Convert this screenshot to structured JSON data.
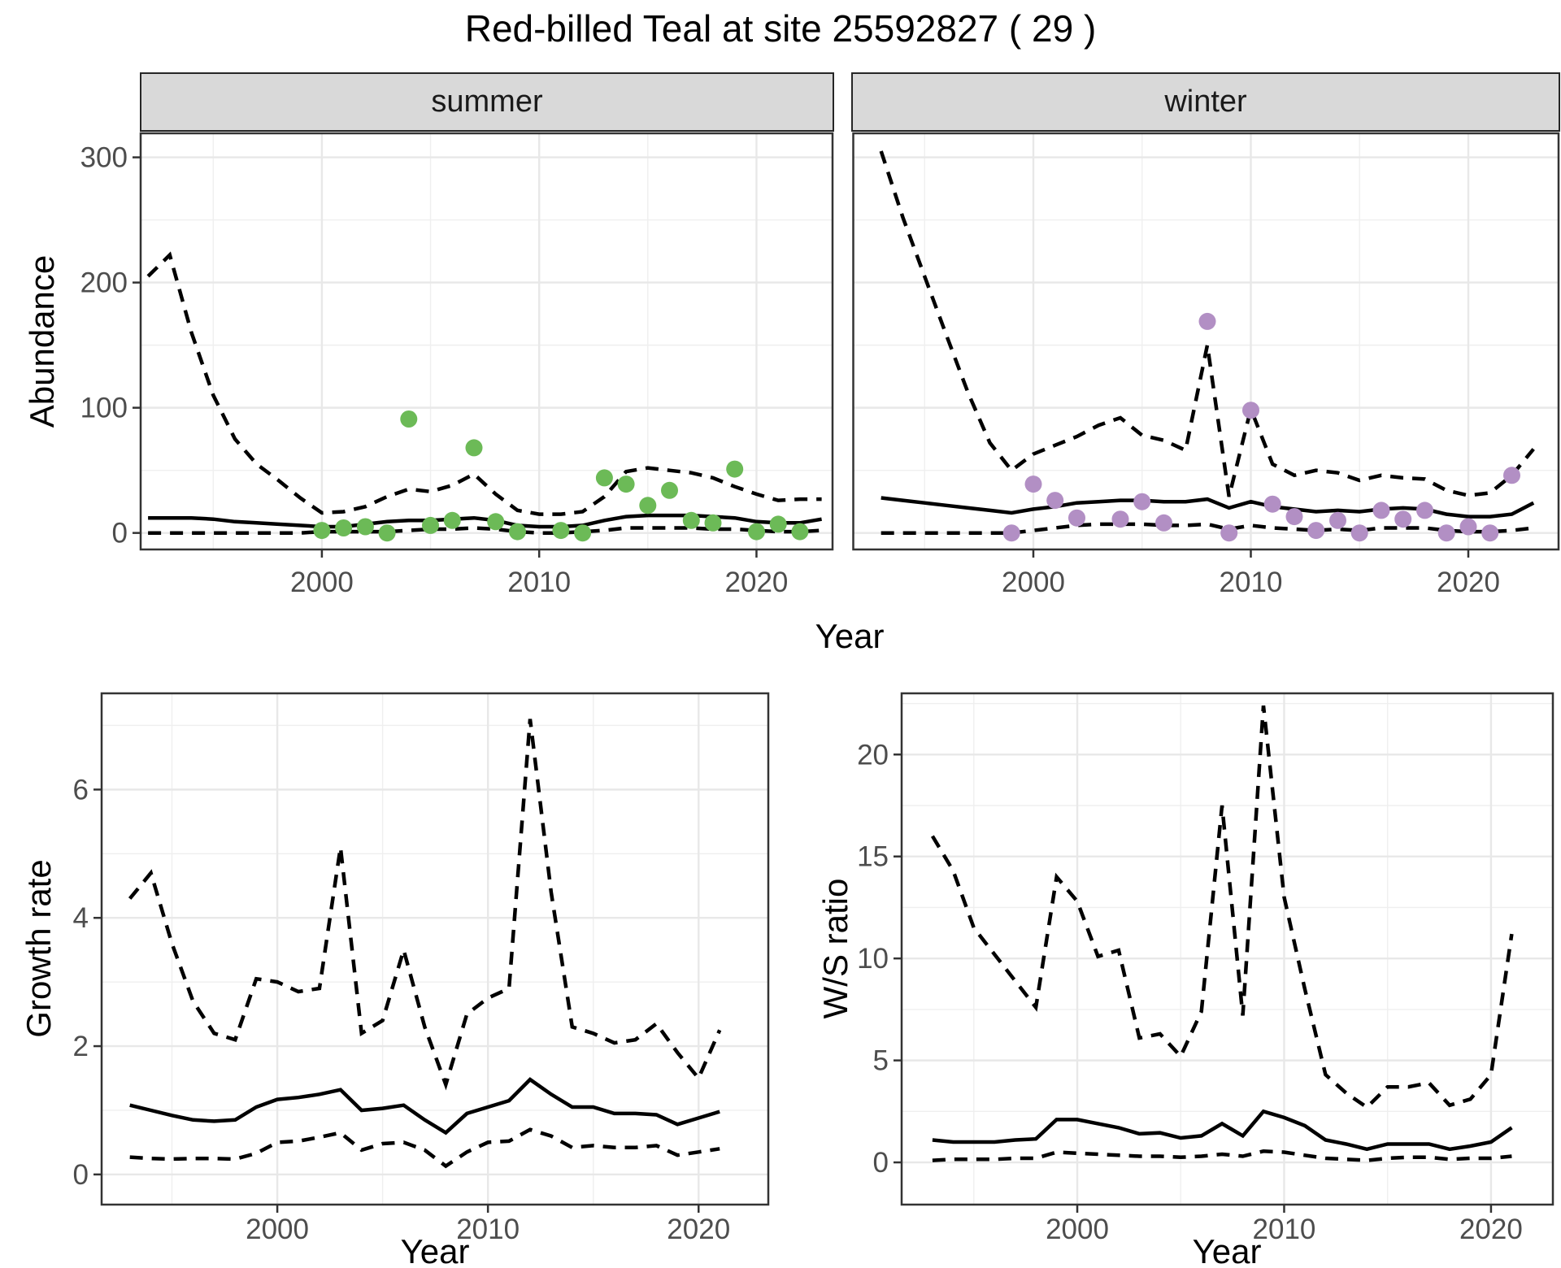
{
  "title": "Red-billed Teal at site 25592827 ( 29 )",
  "facets": {
    "summer": "summer",
    "winter": "winter"
  },
  "labels": {
    "abundance": "Abundance",
    "growth_rate": "Growth rate",
    "ws_ratio": "W/S ratio",
    "year": "Year"
  },
  "colors": {
    "summer_points": "#6CBA57",
    "winter_points": "#B28FC4",
    "line": "#000000",
    "grid_major": "#E8E8E8",
    "grid_minor": "#EFEFEF",
    "panel_border": "#333333",
    "strip_bg": "#D9D9D9",
    "tick_text": "#4D4D4D"
  },
  "chart_data": [
    {
      "id": "abundance-summer",
      "type": "line",
      "facet": "summer",
      "xlabel": "Year",
      "ylabel": "Abundance",
      "xlim": [
        1991.66,
        2023.5
      ],
      "ylim": [
        -13.2,
        319.2
      ],
      "xticks": [
        2000,
        2010,
        2020
      ],
      "xminor": [
        1995,
        2005,
        2015
      ],
      "yticks": [
        0,
        100,
        200,
        300
      ],
      "yminor": [
        50,
        150,
        250
      ],
      "grid": true,
      "legend_position": "none",
      "series": [
        {
          "name": "upper_95CI",
          "style": "dashed",
          "x": [
            1992,
            1993,
            1994,
            1995,
            1996,
            1997,
            1998,
            1999,
            2000,
            2001,
            2002,
            2003,
            2004,
            2005,
            2006,
            2007,
            2008,
            2009,
            2010,
            2011,
            2012,
            2013,
            2014,
            2015,
            2016,
            2017,
            2018,
            2019,
            2020,
            2021,
            2022,
            2023
          ],
          "y": [
            205,
            222,
            160,
            110,
            75,
            55,
            42,
            28,
            16,
            17,
            21,
            29,
            35,
            33,
            38,
            47,
            31,
            18,
            15,
            15,
            17,
            29,
            49,
            52,
            50,
            48,
            44,
            37,
            31,
            26,
            27,
            27
          ]
        },
        {
          "name": "median",
          "style": "solid",
          "x": [
            1992,
            1993,
            1994,
            1995,
            1996,
            1997,
            1998,
            1999,
            2000,
            2001,
            2002,
            2003,
            2004,
            2005,
            2006,
            2007,
            2008,
            2009,
            2010,
            2011,
            2012,
            2013,
            2014,
            2015,
            2016,
            2017,
            2018,
            2019,
            2020,
            2021,
            2022,
            2023
          ],
          "y": [
            12,
            12,
            12,
            11,
            9,
            8,
            7,
            6,
            5,
            5,
            7,
            9,
            10,
            10,
            11,
            12,
            10,
            6,
            5,
            5,
            6,
            10,
            13,
            14,
            14,
            14,
            13,
            12,
            9,
            8,
            8,
            11
          ]
        },
        {
          "name": "lower_95CI",
          "style": "dashed",
          "x": [
            1992,
            1993,
            1994,
            1995,
            1996,
            1997,
            1998,
            1999,
            2000,
            2001,
            2002,
            2003,
            2004,
            2005,
            2006,
            2007,
            2008,
            2009,
            2010,
            2011,
            2012,
            2013,
            2014,
            2015,
            2016,
            2017,
            2018,
            2019,
            2020,
            2021,
            2022,
            2023
          ],
          "y": [
            0,
            0,
            0,
            0,
            0,
            0,
            0,
            0,
            1,
            1,
            1,
            1,
            2,
            3,
            3,
            4,
            3,
            1,
            0,
            0,
            1,
            2,
            4,
            4,
            4,
            4,
            3,
            3,
            2,
            1,
            1,
            2
          ]
        }
      ],
      "points": {
        "name": "observed-counts-summer",
        "color": "#6CBA57",
        "x": [
          2000,
          2001,
          2002,
          2003,
          2004,
          2005,
          2006,
          2007,
          2008,
          2009,
          2011,
          2012,
          2013,
          2014,
          2015,
          2016,
          2017,
          2018,
          2019,
          2020,
          2021,
          2022
        ],
        "y": [
          2,
          4,
          5,
          0,
          91,
          6,
          10,
          68,
          9,
          1,
          2,
          0,
          44,
          39,
          22,
          34,
          10,
          8,
          51,
          1,
          7,
          1
        ]
      }
    },
    {
      "id": "abundance-winter",
      "type": "line",
      "facet": "winter",
      "xlabel": "Year",
      "ylabel": "Abundance",
      "xlim": [
        1991.72,
        2024.15
      ],
      "ylim": [
        -13.2,
        319.2
      ],
      "xticks": [
        2000,
        2010,
        2020
      ],
      "xminor": [
        1995,
        2005,
        2015
      ],
      "yticks": [
        0,
        100,
        200,
        300
      ],
      "yminor": [
        50,
        150,
        250
      ],
      "grid": true,
      "legend_position": "none",
      "series": [
        {
          "name": "upper_95CI",
          "style": "dashed",
          "x": [
            1993,
            1994,
            1995,
            1996,
            1997,
            1998,
            1999,
            2000,
            2001,
            2002,
            2003,
            2004,
            2005,
            2006,
            2007,
            2008,
            2009,
            2010,
            2011,
            2012,
            2013,
            2014,
            2015,
            2016,
            2017,
            2018,
            2019,
            2020,
            2021,
            2022,
            2023
          ],
          "y": [
            305,
            252,
            205,
            158,
            112,
            72,
            50,
            63,
            70,
            77,
            86,
            92,
            78,
            74,
            66,
            150,
            29,
            99,
            55,
            46,
            50,
            48,
            42,
            46,
            44,
            43,
            34,
            30,
            32,
            46,
            67
          ]
        },
        {
          "name": "median",
          "style": "solid",
          "x": [
            1993,
            1994,
            1995,
            1996,
            1997,
            1998,
            1999,
            2000,
            2001,
            2002,
            2003,
            2004,
            2005,
            2006,
            2007,
            2008,
            2009,
            2010,
            2011,
            2012,
            2013,
            2014,
            2015,
            2016,
            2017,
            2018,
            2019,
            2020,
            2021,
            2022,
            2023
          ],
          "y": [
            28,
            26,
            24,
            22,
            20,
            18,
            16,
            19,
            21,
            24,
            25,
            26,
            26,
            25,
            25,
            27,
            20,
            25,
            21,
            19,
            17,
            18,
            17,
            19,
            20,
            19,
            15,
            13,
            13,
            15,
            24
          ]
        },
        {
          "name": "lower_95CI",
          "style": "dashed",
          "x": [
            1993,
            1994,
            1995,
            1996,
            1997,
            1998,
            1999,
            2000,
            2001,
            2002,
            2003,
            2004,
            2005,
            2006,
            2007,
            2008,
            2009,
            2010,
            2011,
            2012,
            2013,
            2014,
            2015,
            2016,
            2017,
            2018,
            2019,
            2020,
            2021,
            2022,
            2023
          ],
          "y": [
            0,
            0,
            0,
            0,
            0,
            0,
            0,
            2,
            4,
            6,
            7,
            7,
            7,
            6,
            6,
            7,
            3,
            6,
            4,
            3,
            2,
            3,
            2,
            4,
            4,
            4,
            2,
            1,
            1,
            2,
            4
          ]
        }
      ],
      "points": {
        "name": "observed-counts-winter",
        "color": "#B28FC4",
        "x": [
          1999,
          2000,
          2001,
          2002,
          2004,
          2005,
          2006,
          2008,
          2009,
          2010,
          2011,
          2012,
          2013,
          2014,
          2015,
          2016,
          2017,
          2018,
          2019,
          2020,
          2021,
          2022
        ],
        "y": [
          0,
          39,
          26,
          12,
          11,
          25,
          8,
          169,
          0,
          98,
          23,
          13,
          2,
          10,
          0,
          18,
          11,
          18,
          0,
          5,
          0,
          46
        ]
      }
    },
    {
      "id": "growth-rate",
      "type": "line",
      "facet": null,
      "xlabel": "Year",
      "ylabel": "Growth rate",
      "xlim": [
        1991.66,
        2023.31
      ],
      "ylim": [
        -0.47,
        7.5
      ],
      "xticks": [
        2000,
        2010,
        2020
      ],
      "xminor": [
        1995,
        2005,
        2015
      ],
      "yticks": [
        0,
        2,
        4,
        6
      ],
      "yminor": [
        1,
        3,
        5,
        7
      ],
      "grid": true,
      "legend_position": "none",
      "series": [
        {
          "name": "upper_95CI",
          "style": "dashed",
          "x": [
            1993,
            1994,
            1995,
            1996,
            1997,
            1998,
            1999,
            2000,
            2001,
            2002,
            2003,
            2004,
            2005,
            2006,
            2007,
            2008,
            2009,
            2010,
            2011,
            2012,
            2013,
            2014,
            2015,
            2016,
            2017,
            2018,
            2019,
            2020,
            2021
          ],
          "y": [
            4.3,
            4.7,
            3.6,
            2.7,
            2.2,
            2.1,
            3.05,
            3.0,
            2.85,
            2.9,
            5.1,
            2.2,
            2.4,
            3.5,
            2.3,
            1.4,
            2.5,
            2.75,
            2.9,
            7.1,
            4.4,
            2.3,
            2.2,
            2.05,
            2.1,
            2.35,
            1.9,
            1.5,
            2.25
          ]
        },
        {
          "name": "median",
          "style": "solid",
          "x": [
            1993,
            1994,
            1995,
            1996,
            1997,
            1998,
            1999,
            2000,
            2001,
            2002,
            2003,
            2004,
            2005,
            2006,
            2007,
            2008,
            2009,
            2010,
            2011,
            2012,
            2013,
            2014,
            2015,
            2016,
            2017,
            2018,
            2019,
            2020,
            2021
          ],
          "y": [
            1.08,
            1.0,
            0.92,
            0.85,
            0.83,
            0.85,
            1.05,
            1.17,
            1.2,
            1.25,
            1.32,
            1.0,
            1.03,
            1.08,
            0.85,
            0.65,
            0.95,
            1.05,
            1.15,
            1.48,
            1.25,
            1.05,
            1.05,
            0.95,
            0.95,
            0.93,
            0.78,
            0.88,
            0.98
          ]
        },
        {
          "name": "lower_95CI",
          "style": "dashed",
          "x": [
            1993,
            1994,
            1995,
            1996,
            1997,
            1998,
            1999,
            2000,
            2001,
            2002,
            2003,
            2004,
            2005,
            2006,
            2007,
            2008,
            2009,
            2010,
            2011,
            2012,
            2013,
            2014,
            2015,
            2016,
            2017,
            2018,
            2019,
            2020,
            2021
          ],
          "y": [
            0.27,
            0.25,
            0.24,
            0.25,
            0.25,
            0.24,
            0.33,
            0.5,
            0.52,
            0.58,
            0.65,
            0.38,
            0.48,
            0.5,
            0.38,
            0.13,
            0.35,
            0.5,
            0.52,
            0.7,
            0.6,
            0.42,
            0.45,
            0.42,
            0.42,
            0.45,
            0.3,
            0.35,
            0.4
          ]
        }
      ],
      "points": null
    },
    {
      "id": "ws-ratio",
      "type": "line",
      "facet": null,
      "xlabel": "Year",
      "ylabel": "W/S ratio",
      "xlim": [
        1991.51,
        2022.99
      ],
      "ylim": [
        -2.07,
        23.0
      ],
      "xticks": [
        2000,
        2010,
        2020
      ],
      "xminor": [
        1995,
        2005,
        2015
      ],
      "yticks": [
        0,
        5,
        10,
        15,
        20
      ],
      "yminor": [
        2.5,
        7.5,
        12.5,
        17.5,
        22.5
      ],
      "grid": true,
      "legend_position": "none",
      "series": [
        {
          "name": "upper_95CI",
          "style": "dashed",
          "x": [
            1993,
            1994,
            1995,
            1996,
            1997,
            1998,
            1999,
            2000,
            2001,
            2002,
            2003,
            2004,
            2005,
            2006,
            2007,
            2008,
            2009,
            2010,
            2011,
            2012,
            2013,
            2014,
            2015,
            2016,
            2017,
            2018,
            2019,
            2020,
            2021
          ],
          "y": [
            16,
            14.3,
            11.5,
            10.2,
            8.9,
            7.6,
            14,
            12.8,
            10.1,
            10.4,
            6.1,
            6.3,
            5.2,
            7.4,
            17.5,
            7.2,
            22.4,
            13,
            8.5,
            4.3,
            3.4,
            2.7,
            3.7,
            3.7,
            3.9,
            2.8,
            3.1,
            4.3,
            11.2
          ]
        },
        {
          "name": "median",
          "style": "solid",
          "x": [
            1993,
            1994,
            1995,
            1996,
            1997,
            1998,
            1999,
            2000,
            2001,
            2002,
            2003,
            2004,
            2005,
            2006,
            2007,
            2008,
            2009,
            2010,
            2011,
            2012,
            2013,
            2014,
            2015,
            2016,
            2017,
            2018,
            2019,
            2020,
            2021
          ],
          "y": [
            1.1,
            1.0,
            1.0,
            1.0,
            1.1,
            1.15,
            2.1,
            2.1,
            1.9,
            1.7,
            1.4,
            1.45,
            1.2,
            1.3,
            1.9,
            1.3,
            2.5,
            2.2,
            1.8,
            1.1,
            0.9,
            0.65,
            0.9,
            0.9,
            0.9,
            0.65,
            0.8,
            1.0,
            1.7
          ]
        },
        {
          "name": "lower_95CI",
          "style": "dashed",
          "x": [
            1993,
            1994,
            1995,
            1996,
            1997,
            1998,
            1999,
            2000,
            2001,
            2002,
            2003,
            2004,
            2005,
            2006,
            2007,
            2008,
            2009,
            2010,
            2011,
            2012,
            2013,
            2014,
            2015,
            2016,
            2017,
            2018,
            2019,
            2020,
            2021
          ],
          "y": [
            0.1,
            0.15,
            0.15,
            0.15,
            0.2,
            0.2,
            0.5,
            0.45,
            0.4,
            0.35,
            0.3,
            0.3,
            0.25,
            0.3,
            0.4,
            0.3,
            0.55,
            0.5,
            0.35,
            0.2,
            0.15,
            0.1,
            0.2,
            0.25,
            0.25,
            0.15,
            0.2,
            0.2,
            0.3
          ]
        }
      ],
      "points": null
    }
  ]
}
